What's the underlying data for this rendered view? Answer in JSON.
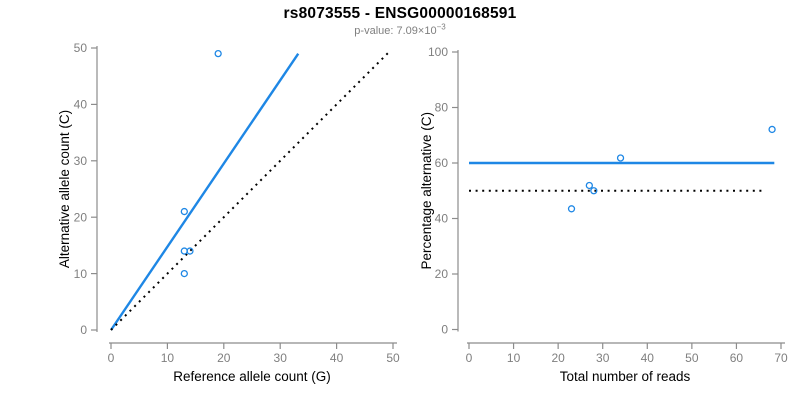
{
  "header": {
    "title": "rs8073555 - ENSG00000168591",
    "pvalue_prefix": "p-value: 7.09×10",
    "pvalue_exponent": "−3"
  },
  "colors": {
    "accent_blue": "#1E87E5",
    "axis_gray": "#8c8c8c",
    "tick_label_gray": "#7f7f7f",
    "label_black": "#000000",
    "dotted_line_black": "#000000"
  },
  "chart_data": [
    {
      "type": "scatter",
      "title": "",
      "xlabel": "Reference allele count (G)",
      "ylabel": "Alternative allele count (C)",
      "xlim": [
        0,
        50
      ],
      "ylim": [
        0,
        50
      ],
      "xticks": [
        0,
        10,
        20,
        30,
        40,
        50
      ],
      "yticks": [
        0,
        10,
        20,
        30,
        40,
        50
      ],
      "grid": false,
      "legend": null,
      "marker": "open-circle",
      "points": [
        [
          13,
          21
        ],
        [
          13,
          14
        ],
        [
          14,
          14
        ],
        [
          13,
          10
        ],
        [
          19,
          49
        ]
      ],
      "lines": [
        {
          "name": "regression-line",
          "style": "solid",
          "color": "#1E87E5",
          "x": [
            0,
            33.2
          ],
          "y": [
            0,
            49
          ]
        },
        {
          "name": "identity-line",
          "style": "dotted",
          "color": "#000000",
          "x": [
            0,
            49.3
          ],
          "y": [
            0,
            49.3
          ]
        }
      ]
    },
    {
      "type": "scatter",
      "title": "",
      "xlabel": "Total number of reads",
      "ylabel": "Percentage alternative (C)",
      "xlim": [
        0,
        70
      ],
      "ylim": [
        0,
        100
      ],
      "xticks": [
        0,
        10,
        20,
        30,
        40,
        50,
        60,
        70
      ],
      "yticks": [
        0,
        20,
        40,
        60,
        80,
        100
      ],
      "grid": false,
      "legend": null,
      "marker": "open-circle",
      "points": [
        [
          23,
          43.5
        ],
        [
          27,
          51.9
        ],
        [
          28,
          50
        ],
        [
          34,
          61.8
        ],
        [
          68,
          72.1
        ]
      ],
      "lines": [
        {
          "name": "fitted-percentage-line",
          "style": "solid",
          "color": "#1E87E5",
          "x": [
            0,
            68.5
          ],
          "y": [
            60,
            60
          ]
        },
        {
          "name": "fifty-percent-line",
          "style": "dotted",
          "color": "#000000",
          "x": [
            0,
            66.5
          ],
          "y": [
            50,
            50
          ]
        }
      ]
    }
  ]
}
